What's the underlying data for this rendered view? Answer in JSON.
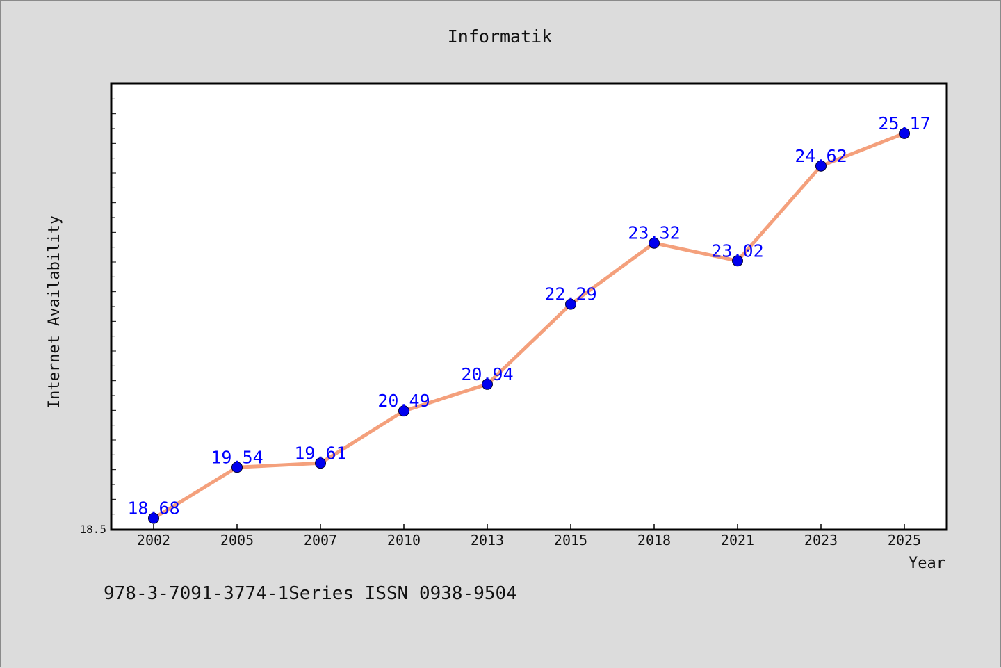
{
  "chart_data": {
    "type": "line",
    "title": "Informatik",
    "xlabel": "Year",
    "ylabel": "Internet Availability",
    "categories": [
      "2002",
      "2005",
      "2007",
      "2010",
      "2013",
      "2015",
      "2018",
      "2021",
      "2023",
      "2025"
    ],
    "series": [
      {
        "values": [
          18.68,
          19.54,
          19.61,
          20.49,
          20.94,
          22.29,
          23.32,
          23.02,
          24.62,
          25.17
        ],
        "line_color": "#f4a07c",
        "marker_color": "#0000ee",
        "label_color": "#0000ff"
      }
    ],
    "ylim": [
      18.5,
      26.0
    ],
    "y_tick_label": "18.5",
    "data_labels": [
      "18.68",
      "19.54",
      "19.61",
      "20.49",
      "20.94",
      "22.29",
      "23.32",
      "23.02",
      "24.62",
      "25.17"
    ],
    "grid": false,
    "legend": "none"
  },
  "footer": {
    "text": "978-3-7091-3774-1Series ISSN 0938-9504"
  }
}
